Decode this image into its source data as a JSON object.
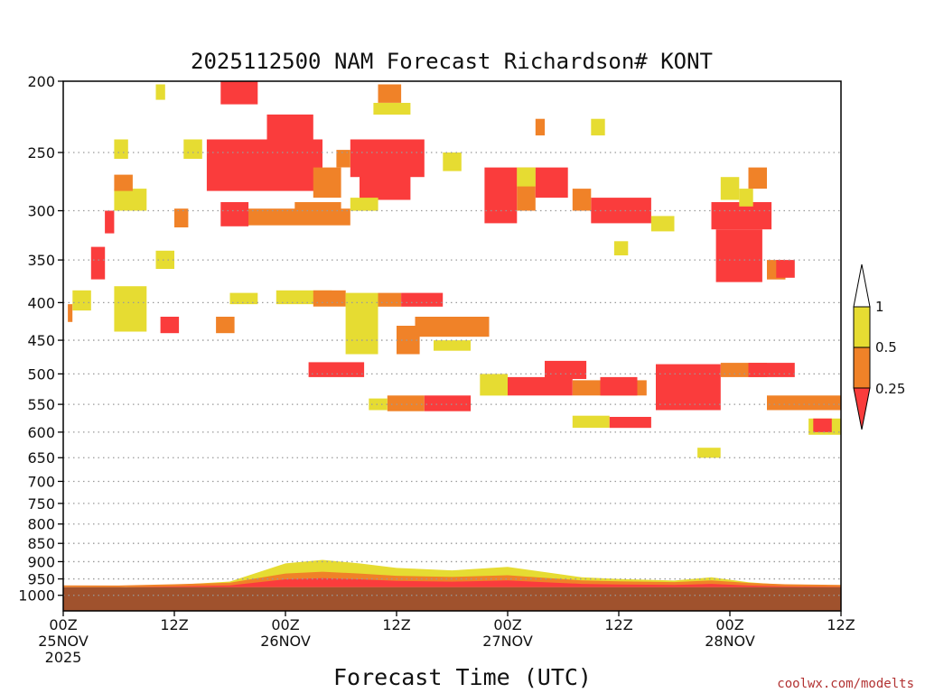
{
  "chart_data": {
    "type": "heatmap",
    "title": "2025112500 NAM Forecast Richardson# KONT",
    "xlabel": "Forecast Time (UTC)",
    "ylabel": "",
    "credit": "coolwx.com/modelts",
    "x_range_hours": [
      0,
      84
    ],
    "y_range_hpa": [
      1050,
      200
    ],
    "y_scale": "log",
    "y_ticks": [
      200,
      250,
      300,
      350,
      400,
      450,
      500,
      550,
      600,
      650,
      700,
      750,
      800,
      850,
      900,
      950,
      1000
    ],
    "y_tick_labels": [
      "200",
      "250",
      "300",
      "350",
      "400",
      "450",
      "500",
      "550",
      "600",
      "650",
      "700",
      "750",
      "800",
      "850",
      "900",
      "950",
      "1000"
    ],
    "x_ticks": [
      {
        "hour": 0,
        "line1": "00Z",
        "line2": "25NOV",
        "line3": "2025"
      },
      {
        "hour": 12,
        "line1": "12Z",
        "line2": "",
        "line3": ""
      },
      {
        "hour": 24,
        "line1": "00Z",
        "line2": "26NOV",
        "line3": ""
      },
      {
        "hour": 36,
        "line1": "12Z",
        "line2": "",
        "line3": ""
      },
      {
        "hour": 48,
        "line1": "00Z",
        "line2": "27NOV",
        "line3": ""
      },
      {
        "hour": 60,
        "line1": "12Z",
        "line2": "",
        "line3": ""
      },
      {
        "hour": 72,
        "line1": "00Z",
        "line2": "28NOV",
        "line3": ""
      },
      {
        "hour": 84,
        "line1": "12Z",
        "line2": "",
        "line3": ""
      }
    ],
    "grid": "dotted horizontal at pressure ticks",
    "legend": {
      "placement": "right",
      "labels": [
        "1",
        "0.5",
        "0.25"
      ],
      "colors": {
        "above_1": "#ffffff",
        "0.5_to_1": "#e6dc32",
        "0.25_to_0.5": "#f08228",
        "below_0.25": "#fa3c3c"
      }
    },
    "surface_color": "#a0522d",
    "surface_top_hpa": 975,
    "colors": {
      "yellow": "#e6dc32",
      "orange": "#f08228",
      "red": "#fa3c3c"
    },
    "regions": [
      {
        "class": "red",
        "x": [
          17,
          21
        ],
        "p": [
          200,
          215
        ]
      },
      {
        "class": "red",
        "x": [
          15.5,
          28
        ],
        "p": [
          240,
          282
        ]
      },
      {
        "class": "red",
        "x": [
          22,
          27
        ],
        "p": [
          222,
          240
        ]
      },
      {
        "class": "orange",
        "x": [
          25,
          30
        ],
        "p": [
          292,
          312
        ]
      },
      {
        "class": "orange",
        "x": [
          19.5,
          31
        ],
        "p": [
          298,
          314
        ]
      },
      {
        "class": "red",
        "x": [
          17,
          20
        ],
        "p": [
          292,
          315
        ]
      },
      {
        "class": "red",
        "x": [
          31,
          39
        ],
        "p": [
          240,
          270
        ]
      },
      {
        "class": "red",
        "x": [
          32,
          37.5
        ],
        "p": [
          268,
          290
        ]
      },
      {
        "class": "orange",
        "x": [
          27,
          30
        ],
        "p": [
          262,
          288
        ]
      },
      {
        "class": "orange",
        "x": [
          29.5,
          31
        ],
        "p": [
          248,
          262
        ]
      },
      {
        "class": "yellow",
        "x": [
          31,
          34
        ],
        "p": [
          288,
          300
        ]
      },
      {
        "class": "orange",
        "x": [
          34,
          36.5
        ],
        "p": [
          202,
          214
        ]
      },
      {
        "class": "yellow",
        "x": [
          33.5,
          37.5
        ],
        "p": [
          214,
          222
        ]
      },
      {
        "class": "yellow",
        "x": [
          10,
          12
        ],
        "p": [
          340,
          360
        ]
      },
      {
        "class": "yellow",
        "x": [
          5.5,
          9
        ],
        "p": [
          280,
          300
        ]
      },
      {
        "class": "orange",
        "x": [
          5.5,
          7.5
        ],
        "p": [
          268,
          282
        ]
      },
      {
        "class": "orange",
        "x": [
          12,
          13.5
        ],
        "p": [
          298,
          316
        ]
      },
      {
        "class": "red",
        "x": [
          4.5,
          5.5
        ],
        "p": [
          300,
          322
        ]
      },
      {
        "class": "red",
        "x": [
          3,
          4.5
        ],
        "p": [
          336,
          372
        ]
      },
      {
        "class": "orange",
        "x": [
          0.5,
          1
        ],
        "p": [
          402,
          425
        ]
      },
      {
        "class": "yellow",
        "x": [
          1,
          3
        ],
        "p": [
          385,
          410
        ]
      },
      {
        "class": "yellow",
        "x": [
          5.5,
          9
        ],
        "p": [
          380,
          438
        ]
      },
      {
        "class": "red",
        "x": [
          10.5,
          12.5
        ],
        "p": [
          418,
          440
        ]
      },
      {
        "class": "orange",
        "x": [
          16.5,
          18.5
        ],
        "p": [
          418,
          440
        ]
      },
      {
        "class": "yellow",
        "x": [
          18,
          21
        ],
        "p": [
          388,
          402
        ]
      },
      {
        "class": "yellow",
        "x": [
          23,
          29
        ],
        "p": [
          385,
          402
        ]
      },
      {
        "class": "orange",
        "x": [
          27,
          30.5
        ],
        "p": [
          385,
          405
        ]
      },
      {
        "class": "yellow",
        "x": [
          30.5,
          34
        ],
        "p": [
          388,
          470
        ]
      },
      {
        "class": "orange",
        "x": [
          34,
          36.5
        ],
        "p": [
          388,
          405
        ]
      },
      {
        "class": "red",
        "x": [
          36.5,
          41
        ],
        "p": [
          388,
          405
        ]
      },
      {
        "class": "orange",
        "x": [
          38,
          46
        ],
        "p": [
          418,
          445
        ]
      },
      {
        "class": "orange",
        "x": [
          36,
          38.5
        ],
        "p": [
          430,
          470
        ]
      },
      {
        "class": "yellow",
        "x": [
          40,
          44
        ],
        "p": [
          450,
          465
        ]
      },
      {
        "class": "red",
        "x": [
          26.5,
          32.5
        ],
        "p": [
          482,
          505
        ]
      },
      {
        "class": "orange",
        "x": [
          35,
          39
        ],
        "p": [
          535,
          562
        ]
      },
      {
        "class": "red",
        "x": [
          39,
          44
        ],
        "p": [
          535,
          562
        ]
      },
      {
        "class": "yellow",
        "x": [
          33,
          35
        ],
        "p": [
          540,
          560
        ]
      },
      {
        "class": "yellow",
        "x": [
          45,
          48
        ],
        "p": [
          500,
          535
        ]
      },
      {
        "class": "red",
        "x": [
          48,
          55
        ],
        "p": [
          505,
          535
        ]
      },
      {
        "class": "red",
        "x": [
          52,
          56.5
        ],
        "p": [
          480,
          508
        ]
      },
      {
        "class": "orange",
        "x": [
          55,
          63
        ],
        "p": [
          510,
          535
        ]
      },
      {
        "class": "red",
        "x": [
          58,
          62
        ],
        "p": [
          505,
          535
        ]
      },
      {
        "class": "red",
        "x": [
          64,
          71
        ],
        "p": [
          485,
          560
        ]
      },
      {
        "class": "orange",
        "x": [
          71,
          76
        ],
        "p": [
          483,
          505
        ]
      },
      {
        "class": "red",
        "x": [
          74,
          79
        ],
        "p": [
          483,
          505
        ]
      },
      {
        "class": "orange",
        "x": [
          76,
          84
        ],
        "p": [
          535,
          560
        ]
      },
      {
        "class": "yellow",
        "x": [
          55,
          59
        ],
        "p": [
          570,
          592
        ]
      },
      {
        "class": "red",
        "x": [
          59,
          63.5
        ],
        "p": [
          572,
          592
        ]
      },
      {
        "class": "red",
        "x": [
          45.5,
          49
        ],
        "p": [
          262,
          312
        ]
      },
      {
        "class": "orange",
        "x": [
          49,
          51
        ],
        "p": [
          262,
          300
        ]
      },
      {
        "class": "red",
        "x": [
          51,
          54.5
        ],
        "p": [
          262,
          288
        ]
      },
      {
        "class": "red",
        "x": [
          57,
          63.5
        ],
        "p": [
          288,
          312
        ]
      },
      {
        "class": "orange",
        "x": [
          55,
          57
        ],
        "p": [
          280,
          300
        ]
      },
      {
        "class": "yellow",
        "x": [
          49,
          51
        ],
        "p": [
          262,
          278
        ]
      },
      {
        "class": "red",
        "x": [
          70,
          76.5
        ],
        "p": [
          292,
          318
        ]
      },
      {
        "class": "red",
        "x": [
          70.5,
          75.5
        ],
        "p": [
          318,
          375
        ]
      },
      {
        "class": "orange",
        "x": [
          76,
          78
        ],
        "p": [
          350,
          372
        ]
      },
      {
        "class": "red",
        "x": [
          77,
          79
        ],
        "p": [
          350,
          370
        ]
      },
      {
        "class": "yellow",
        "x": [
          73,
          74.5
        ],
        "p": [
          280,
          296
        ]
      },
      {
        "class": "orange",
        "x": [
          74,
          76
        ],
        "p": [
          262,
          280
        ]
      },
      {
        "class": "yellow",
        "x": [
          80.5,
          84
        ],
        "p": [
          575,
          605
        ]
      },
      {
        "class": "red",
        "x": [
          81,
          83
        ],
        "p": [
          575,
          600
        ]
      },
      {
        "class": "yellow",
        "x": [
          68.5,
          71
        ],
        "p": [
          630,
          650
        ]
      },
      {
        "class": "yellow",
        "x": [
          5.5,
          7
        ],
        "p": [
          240,
          255
        ]
      },
      {
        "class": "yellow",
        "x": [
          13,
          15
        ],
        "p": [
          240,
          255
        ]
      },
      {
        "class": "yellow",
        "x": [
          10,
          11
        ],
        "p": [
          202,
          212
        ]
      },
      {
        "class": "yellow",
        "x": [
          41,
          43
        ],
        "p": [
          250,
          265
        ]
      },
      {
        "class": "yellow",
        "x": [
          57,
          58.5
        ],
        "p": [
          225,
          237
        ]
      },
      {
        "class": "orange",
        "x": [
          51,
          52
        ],
        "p": [
          225,
          237
        ]
      },
      {
        "class": "yellow",
        "x": [
          71,
          73
        ],
        "p": [
          270,
          290
        ]
      },
      {
        "class": "yellow",
        "x": [
          63.5,
          66
        ],
        "p": [
          305,
          320
        ]
      },
      {
        "class": "yellow",
        "x": [
          59.5,
          61
        ],
        "p": [
          330,
          345
        ]
      }
    ],
    "blh": [
      {
        "x": 0,
        "p": 975
      },
      {
        "x": 6,
        "p": 976
      },
      {
        "x": 12,
        "p": 968
      },
      {
        "x": 18,
        "p": 958
      },
      {
        "x": 24,
        "p": 905
      },
      {
        "x": 28,
        "p": 895
      },
      {
        "x": 32,
        "p": 905
      },
      {
        "x": 36,
        "p": 918
      },
      {
        "x": 42,
        "p": 925
      },
      {
        "x": 48,
        "p": 915
      },
      {
        "x": 52,
        "p": 930
      },
      {
        "x": 56,
        "p": 945
      },
      {
        "x": 60,
        "p": 950
      },
      {
        "x": 66,
        "p": 955
      },
      {
        "x": 70,
        "p": 945
      },
      {
        "x": 74,
        "p": 960
      },
      {
        "x": 78,
        "p": 968
      },
      {
        "x": 84,
        "p": 972
      }
    ]
  }
}
